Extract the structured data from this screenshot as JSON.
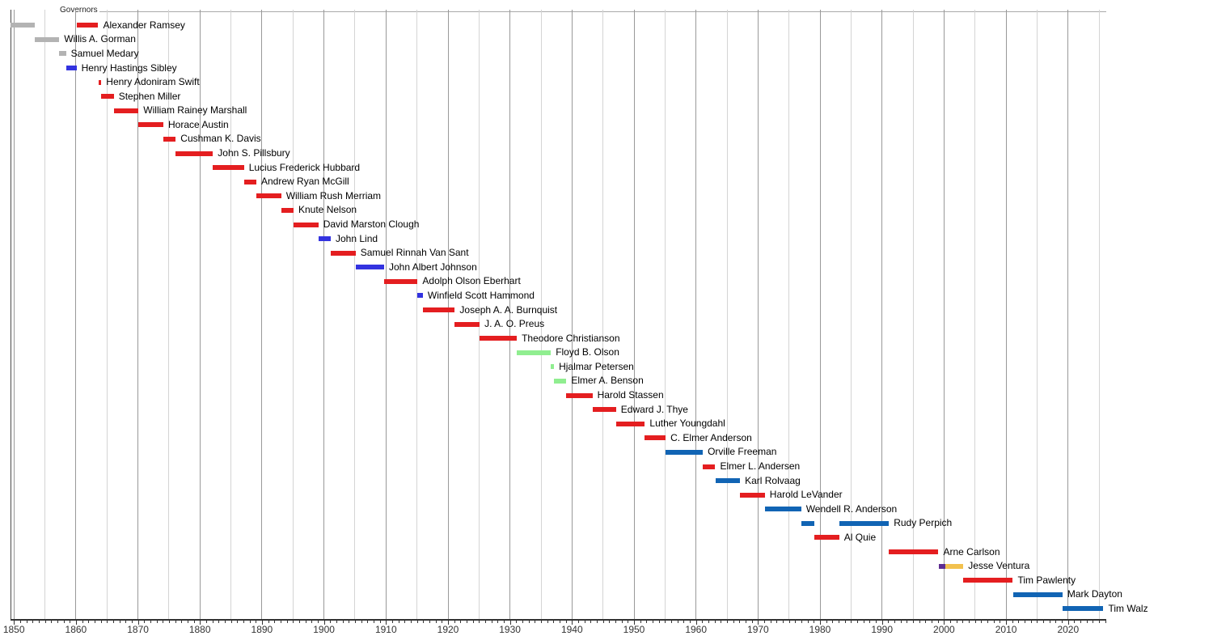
{
  "chart_data": {
    "type": "gantt",
    "title": "Governors",
    "x_axis": {
      "min": 1849.3,
      "max": 2026.2,
      "gridline_interval_years": 5,
      "tick_interval_years": 1,
      "decade_labels": [
        "1850",
        "1860",
        "1870",
        "1880",
        "1890",
        "1900",
        "1910",
        "1920",
        "1930",
        "1940",
        "1950",
        "1960",
        "1970",
        "1980",
        "1990",
        "2000",
        "2010",
        "2020"
      ]
    },
    "party_colors": {
      "territorial": "#b3b3b3",
      "democratic": "#3333e0",
      "republican": "#e41e20",
      "farmer_labor": "#90ee90",
      "dfl": "#1164b4",
      "reform": "#5e2d91",
      "independence": "#f2c14e"
    },
    "rows": [
      {
        "label": "Alexander Ramsey",
        "bars": [
          {
            "start": 1849.4,
            "end": 1853.3,
            "party": "territorial"
          },
          {
            "start": 1860.1,
            "end": 1863.6,
            "party": "republican"
          }
        ]
      },
      {
        "label": "Willis A. Gorman",
        "bars": [
          {
            "start": 1853.3,
            "end": 1857.3,
            "party": "territorial"
          }
        ]
      },
      {
        "label": "Samuel Medary",
        "bars": [
          {
            "start": 1857.3,
            "end": 1858.4,
            "party": "territorial"
          }
        ]
      },
      {
        "label": "Henry Hastings Sibley",
        "bars": [
          {
            "start": 1858.4,
            "end": 1860.1,
            "party": "democratic"
          }
        ]
      },
      {
        "label": "Henry Adoniram Swift",
        "bars": [
          {
            "start": 1863.6,
            "end": 1864.1,
            "party": "republican"
          }
        ]
      },
      {
        "label": "Stephen Miller",
        "bars": [
          {
            "start": 1864.1,
            "end": 1866.1,
            "party": "republican"
          }
        ]
      },
      {
        "label": "William Rainey Marshall",
        "bars": [
          {
            "start": 1866.1,
            "end": 1870.1,
            "party": "republican"
          }
        ]
      },
      {
        "label": "Horace Austin",
        "bars": [
          {
            "start": 1870.1,
            "end": 1874.1,
            "party": "republican"
          }
        ]
      },
      {
        "label": "Cushman K. Davis",
        "bars": [
          {
            "start": 1874.1,
            "end": 1876.1,
            "party": "republican"
          }
        ]
      },
      {
        "label": "John S. Pillsbury",
        "bars": [
          {
            "start": 1876.1,
            "end": 1882.1,
            "party": "republican"
          }
        ]
      },
      {
        "label": "Lucius Frederick Hubbard",
        "bars": [
          {
            "start": 1882.1,
            "end": 1887.1,
            "party": "republican"
          }
        ]
      },
      {
        "label": "Andrew Ryan McGill",
        "bars": [
          {
            "start": 1887.1,
            "end": 1889.1,
            "party": "republican"
          }
        ]
      },
      {
        "label": "William Rush Merriam",
        "bars": [
          {
            "start": 1889.1,
            "end": 1893.1,
            "party": "republican"
          }
        ]
      },
      {
        "label": "Knute Nelson",
        "bars": [
          {
            "start": 1893.1,
            "end": 1895.1,
            "party": "republican"
          }
        ]
      },
      {
        "label": "David Marston Clough",
        "bars": [
          {
            "start": 1895.1,
            "end": 1899.1,
            "party": "republican"
          }
        ]
      },
      {
        "label": "John Lind",
        "bars": [
          {
            "start": 1899.1,
            "end": 1901.1,
            "party": "democratic"
          }
        ]
      },
      {
        "label": "Samuel Rinnah Van Sant",
        "bars": [
          {
            "start": 1901.1,
            "end": 1905.1,
            "party": "republican"
          }
        ]
      },
      {
        "label": "John Albert Johnson",
        "bars": [
          {
            "start": 1905.1,
            "end": 1909.7,
            "party": "democratic"
          }
        ]
      },
      {
        "label": "Adolph Olson Eberhart",
        "bars": [
          {
            "start": 1909.7,
            "end": 1915.1,
            "party": "republican"
          }
        ]
      },
      {
        "label": "Winfield Scott Hammond",
        "bars": [
          {
            "start": 1915.1,
            "end": 1915.95,
            "party": "democratic"
          }
        ]
      },
      {
        "label": "Joseph A. A. Burnquist",
        "bars": [
          {
            "start": 1915.95,
            "end": 1921.1,
            "party": "republican"
          }
        ]
      },
      {
        "label": "J. A. O. Preus",
        "bars": [
          {
            "start": 1921.1,
            "end": 1925.1,
            "party": "republican"
          }
        ]
      },
      {
        "label": "Theodore Christianson",
        "bars": [
          {
            "start": 1925.1,
            "end": 1931.1,
            "party": "republican"
          }
        ]
      },
      {
        "label": "Floyd B. Olson",
        "bars": [
          {
            "start": 1931.1,
            "end": 1936.6,
            "party": "farmer_labor"
          }
        ]
      },
      {
        "label": "Hjalmar Petersen",
        "bars": [
          {
            "start": 1936.6,
            "end": 1937.1,
            "party": "farmer_labor"
          }
        ]
      },
      {
        "label": "Elmer A. Benson",
        "bars": [
          {
            "start": 1937.1,
            "end": 1939.1,
            "party": "farmer_labor"
          }
        ]
      },
      {
        "label": "Harold Stassen",
        "bars": [
          {
            "start": 1939.1,
            "end": 1943.3,
            "party": "republican"
          }
        ]
      },
      {
        "label": "Edward J. Thye",
        "bars": [
          {
            "start": 1943.3,
            "end": 1947.1,
            "party": "republican"
          }
        ]
      },
      {
        "label": "Luther Youngdahl",
        "bars": [
          {
            "start": 1947.1,
            "end": 1951.75,
            "party": "republican"
          }
        ]
      },
      {
        "label": "C. Elmer Anderson",
        "bars": [
          {
            "start": 1951.75,
            "end": 1955.1,
            "party": "republican"
          }
        ]
      },
      {
        "label": "Orville Freeman",
        "bars": [
          {
            "start": 1955.1,
            "end": 1961.1,
            "party": "dfl"
          }
        ]
      },
      {
        "label": "Elmer L. Andersen",
        "bars": [
          {
            "start": 1961.1,
            "end": 1963.1,
            "party": "republican"
          }
        ]
      },
      {
        "label": "Karl Rolvaag",
        "bars": [
          {
            "start": 1963.1,
            "end": 1967.1,
            "party": "dfl"
          }
        ]
      },
      {
        "label": "Harold LeVander",
        "bars": [
          {
            "start": 1967.1,
            "end": 1971.1,
            "party": "republican"
          }
        ]
      },
      {
        "label": "Wendell R. Anderson",
        "bars": [
          {
            "start": 1971.1,
            "end": 1976.95,
            "party": "dfl"
          }
        ]
      },
      {
        "label": "Rudy Perpich",
        "bars": [
          {
            "start": 1976.95,
            "end": 1979.1,
            "party": "dfl"
          },
          {
            "start": 1983.1,
            "end": 1991.1,
            "party": "dfl"
          }
        ]
      },
      {
        "label": "Al Quie",
        "bars": [
          {
            "start": 1979.1,
            "end": 1983.1,
            "party": "republican"
          }
        ]
      },
      {
        "label": "Arne Carlson",
        "bars": [
          {
            "start": 1991.1,
            "end": 1999.1,
            "party": "republican"
          }
        ]
      },
      {
        "label": "Jesse Ventura",
        "bars": [
          {
            "start": 1999.1,
            "end": 2000.2,
            "party": "reform"
          },
          {
            "start": 2000.2,
            "end": 2003.1,
            "party": "independence"
          }
        ]
      },
      {
        "label": "Tim Pawlenty",
        "bars": [
          {
            "start": 2003.1,
            "end": 2011.1,
            "party": "republican"
          }
        ]
      },
      {
        "label": "Mark Dayton",
        "bars": [
          {
            "start": 2011.1,
            "end": 2019.1,
            "party": "dfl"
          }
        ]
      },
      {
        "label": "Tim Walz",
        "bars": [
          {
            "start": 2019.1,
            "end": 2025.7,
            "party": "dfl"
          }
        ]
      }
    ]
  }
}
